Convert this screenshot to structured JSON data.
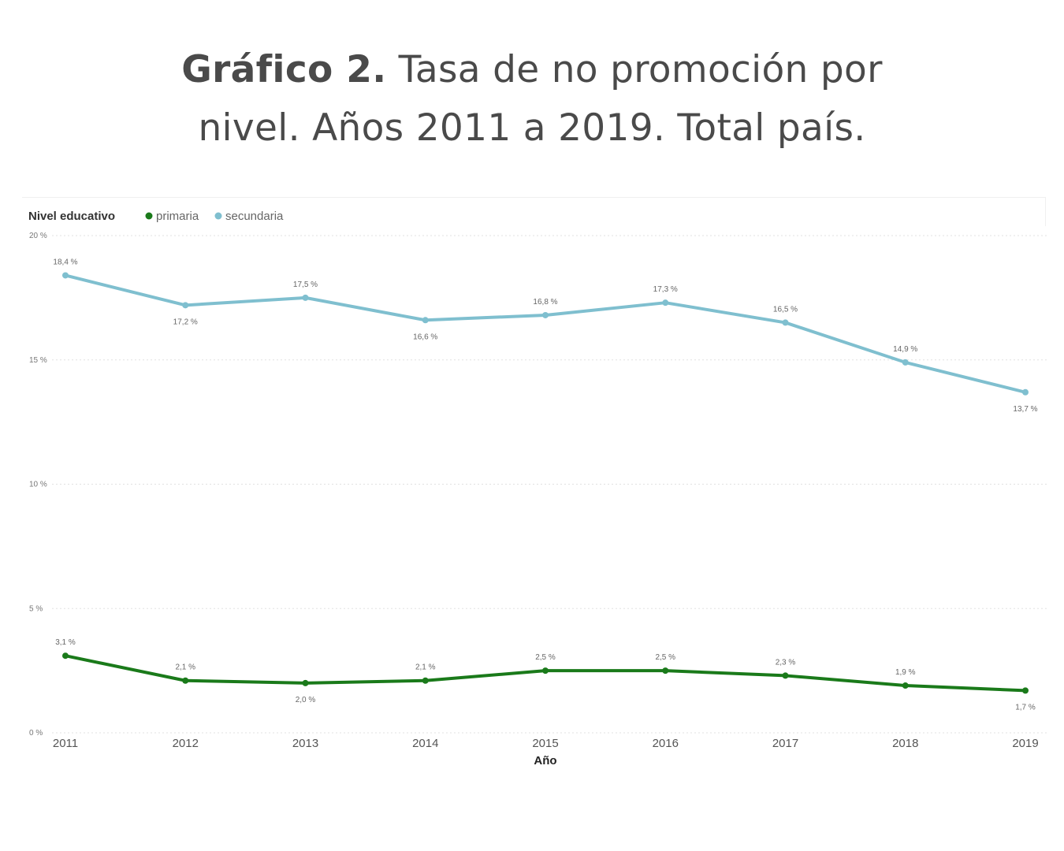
{
  "title": {
    "bold": "Gráfico 2.",
    "line1_rest": " Tasa de no promoción por",
    "line2": "nivel. Años 2011 a 2019. Total país."
  },
  "colors": {
    "primaria": "#1a7a1a",
    "secundaria": "#7fbfcf",
    "grid": "#e2e2e2"
  },
  "chart_data": {
    "type": "line",
    "title": "Gráfico 2. Tasa de no promoción por nivel. Años 2011 a 2019. Total país.",
    "legend_title": "Nivel educativo",
    "xlabel": "Año",
    "ylabel": "",
    "categories": [
      "2011",
      "2012",
      "2013",
      "2014",
      "2015",
      "2016",
      "2017",
      "2018",
      "2019"
    ],
    "yticks": [
      "0 %",
      "5 %",
      "10 %",
      "15 %",
      "20 %"
    ],
    "ylim": [
      0,
      20
    ],
    "grid": true,
    "series": [
      {
        "name": "primaria",
        "values": [
          3.1,
          2.1,
          2.0,
          2.1,
          2.5,
          2.5,
          2.3,
          1.9,
          1.7
        ],
        "labels": [
          "3,1 %",
          "2,1 %",
          "2,0 %",
          "2,1 %",
          "2,5 %",
          "2,5 %",
          "2,3 %",
          "1,9 %",
          "1,7 %"
        ],
        "label_pos": [
          "above",
          "above",
          "below",
          "above",
          "above",
          "above",
          "above",
          "above",
          "below"
        ]
      },
      {
        "name": "secundaria",
        "values": [
          18.4,
          17.2,
          17.5,
          16.6,
          16.8,
          17.3,
          16.5,
          14.9,
          13.7
        ],
        "labels": [
          "18,4 %",
          "17,2 %",
          "17,5 %",
          "16,6 %",
          "16,8 %",
          "17,3 %",
          "16,5 %",
          "14,9 %",
          "13,7 %"
        ],
        "label_pos": [
          "above",
          "below",
          "above",
          "below",
          "above",
          "above",
          "above",
          "above",
          "below"
        ]
      }
    ]
  }
}
